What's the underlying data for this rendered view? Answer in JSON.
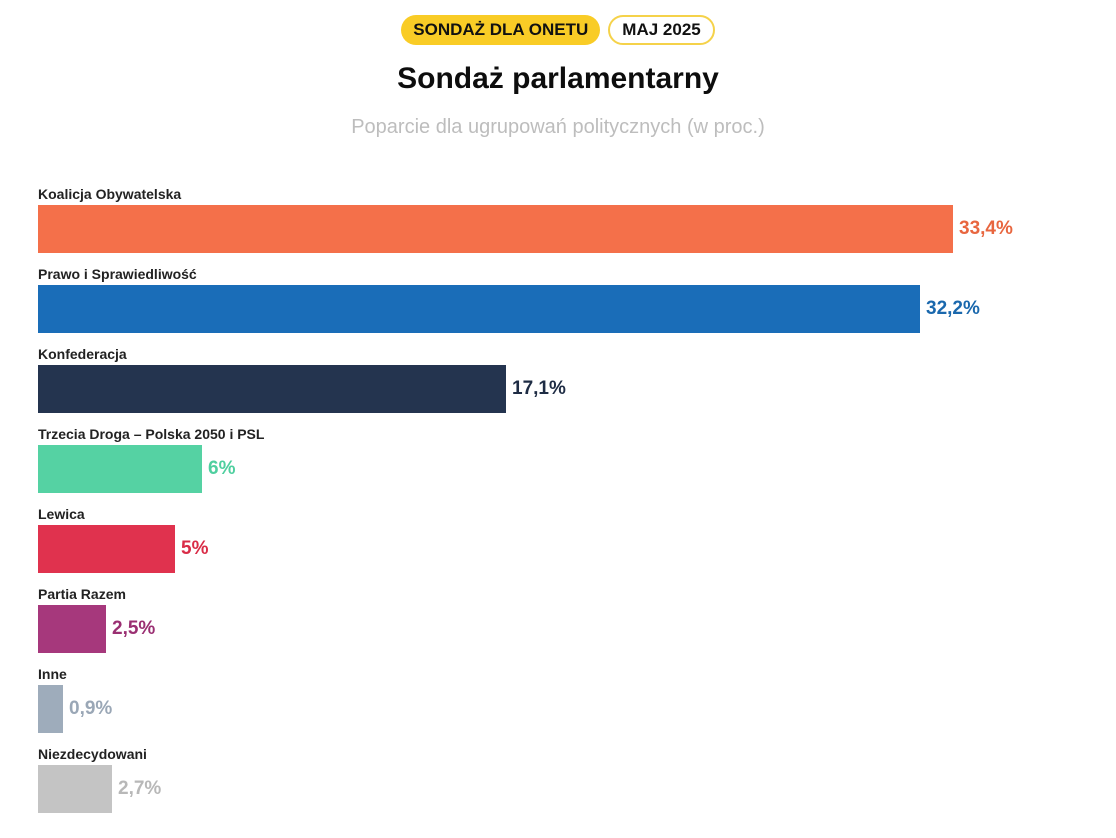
{
  "header": {
    "badge_primary": "SONDAŻ DLA ONETU",
    "badge_secondary": "MAJ 2025",
    "title": "Sondaż parlamentarny",
    "subtitle": "Poparcie dla ugrupowań politycznych (w proc.)"
  },
  "chart_data": {
    "type": "bar",
    "orientation": "horizontal",
    "title": "Sondaż parlamentarny",
    "subtitle": "Poparcie dla ugrupowań politycznych (w proc.)",
    "categories": [
      "Koalicja Obywatelska",
      "Prawo i Sprawiedliwość",
      "Konfederacja",
      "Trzecia Droga – Polska 2050 i PSL",
      "Lewica",
      "Partia Razem",
      "Inne",
      "Niezdecydowani"
    ],
    "values": [
      33.4,
      32.2,
      17.1,
      6,
      5,
      2.5,
      0.9,
      2.7
    ],
    "value_labels": [
      "33,4%",
      "32,2%",
      "17,1%",
      "6%",
      "5%",
      "2,5%",
      "0,9%",
      "2,7%"
    ],
    "bar_colors": [
      "#f4704a",
      "#1a6db8",
      "#24344f",
      "#55d2a3",
      "#e0324e",
      "#a6387c",
      "#9eacbb",
      "#c4c4c4"
    ],
    "label_colors": [
      "#e8663f",
      "#1a68ad",
      "#1e2c44",
      "#4fcf9f",
      "#d92c47",
      "#9a2f72",
      "#9aa7b6",
      "#b8b8b8"
    ],
    "xlim": [
      0,
      33.4
    ],
    "grid": false,
    "legend": "none"
  }
}
